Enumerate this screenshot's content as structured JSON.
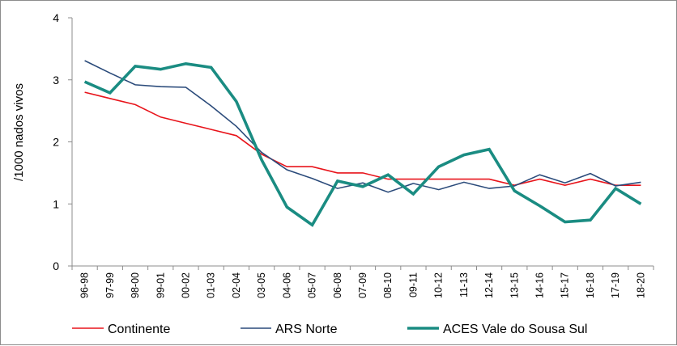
{
  "chart_data": {
    "type": "line",
    "title": "",
    "xlabel": "",
    "ylabel": "/1000 nados vivos",
    "ylim": [
      0,
      4
    ],
    "yticks": [
      "0",
      "1",
      "2",
      "3",
      "4"
    ],
    "grid": false,
    "legend_position": "bottom",
    "categories": [
      "96-98",
      "97-99",
      "98-00",
      "99-01",
      "00-02",
      "01-03",
      "02-04",
      "03-05",
      "04-06",
      "05-07",
      "06-08",
      "07-09",
      "08-10",
      "09-11",
      "10-12",
      "11-13",
      "12-14",
      "13-15",
      "14-16",
      "15-17",
      "16-18",
      "17-19",
      "18-20"
    ],
    "series": [
      {
        "name": "Continente",
        "color": "#e8141b",
        "values": [
          2.8,
          2.7,
          2.6,
          2.4,
          2.3,
          2.2,
          2.1,
          1.8,
          1.6,
          1.6,
          1.5,
          1.5,
          1.4,
          1.4,
          1.4,
          1.4,
          1.4,
          1.3,
          1.4,
          1.3,
          1.4,
          1.3,
          1.3
        ]
      },
      {
        "name": "ARS Norte",
        "color": "#2a4a7a",
        "values": [
          3.31,
          3.11,
          2.92,
          2.89,
          2.88,
          2.58,
          2.25,
          1.83,
          1.55,
          1.41,
          1.25,
          1.34,
          1.19,
          1.33,
          1.23,
          1.35,
          1.25,
          1.29,
          1.47,
          1.34,
          1.49,
          1.29,
          1.35
        ]
      },
      {
        "name": "ACES Vale do Sousa Sul",
        "color": "#1a8c82",
        "values": [
          2.97,
          2.79,
          3.22,
          3.17,
          3.26,
          3.2,
          2.65,
          1.71,
          0.95,
          0.66,
          1.37,
          1.28,
          1.47,
          1.16,
          1.6,
          1.79,
          1.88,
          1.21,
          0.97,
          0.71,
          0.74,
          1.25,
          1.0
        ]
      }
    ]
  }
}
